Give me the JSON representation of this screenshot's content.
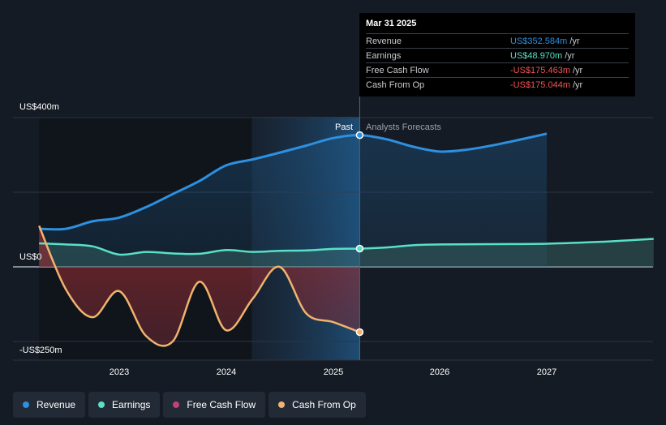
{
  "chart_data": {
    "type": "line",
    "x_ticks": [
      "2023",
      "2024",
      "2025",
      "2026",
      "2027"
    ],
    "y_ticks": {
      "top": "US$400m",
      "zero": "US$0",
      "bottom": "-US$250m"
    },
    "ylim": [
      -250,
      400
    ],
    "past_label": "Past",
    "forecast_label": "Analysts Forecasts",
    "series": [
      {
        "name": "Revenue",
        "color": "#2d90e0",
        "x": [
          2022.25,
          2022.5,
          2022.75,
          2023.0,
          2023.25,
          2023.5,
          2023.75,
          2024.0,
          2024.25,
          2024.5,
          2024.75,
          2025.0,
          2025.25,
          2025.5,
          2025.75,
          2026.0,
          2026.25,
          2026.5,
          2026.75,
          2027.0
        ],
        "values": [
          102,
          102,
          122,
          132,
          160,
          195,
          230,
          272,
          288,
          306,
          325,
          345,
          353,
          342,
          322,
          309,
          314,
          326,
          341,
          357
        ]
      },
      {
        "name": "Earnings",
        "color": "#58e1c7",
        "x": [
          2022.25,
          2022.5,
          2022.75,
          2023.0,
          2023.25,
          2023.5,
          2023.75,
          2024.0,
          2024.25,
          2024.5,
          2024.75,
          2025.0,
          2025.25,
          2025.5,
          2025.75,
          2026.0,
          2026.5,
          2027.0,
          2027.5,
          2028.0
        ],
        "values": [
          63,
          60,
          55,
          33,
          40,
          36,
          35,
          45,
          40,
          43,
          44,
          48,
          49,
          52,
          58,
          60,
          61,
          62,
          67,
          75
        ]
      },
      {
        "name": "Free Cash Flow",
        "color": "#c3407a",
        "x": [],
        "values": []
      },
      {
        "name": "Cash From Op",
        "color": "#f1b36d",
        "x": [
          2022.25,
          2022.5,
          2022.75,
          2023.0,
          2023.25,
          2023.5,
          2023.75,
          2024.0,
          2024.25,
          2024.5,
          2024.75,
          2025.0,
          2025.25
        ],
        "values": [
          110,
          -60,
          -135,
          -65,
          -185,
          -200,
          -40,
          -170,
          -85,
          0,
          -125,
          -148,
          -175
        ]
      }
    ]
  },
  "tooltip": {
    "date": "Mar 31 2025",
    "rows": [
      {
        "label": "Revenue",
        "value": "US$352.584m",
        "unit": "/yr",
        "color": "#2d90e0"
      },
      {
        "label": "Earnings",
        "value": "US$48.970m",
        "unit": "/yr",
        "color": "#58e1c7"
      },
      {
        "label": "Free Cash Flow",
        "value": "-US$175.463m",
        "unit": "/yr",
        "color": "#f05454"
      },
      {
        "label": "Cash From Op",
        "value": "-US$175.044m",
        "unit": "/yr",
        "color": "#f05454"
      }
    ]
  },
  "legend": [
    {
      "label": "Revenue",
      "color": "#2d90e0"
    },
    {
      "label": "Earnings",
      "color": "#58e1c7"
    },
    {
      "label": "Free Cash Flow",
      "color": "#c3407a"
    },
    {
      "label": "Cash From Op",
      "color": "#f1b36d"
    }
  ]
}
